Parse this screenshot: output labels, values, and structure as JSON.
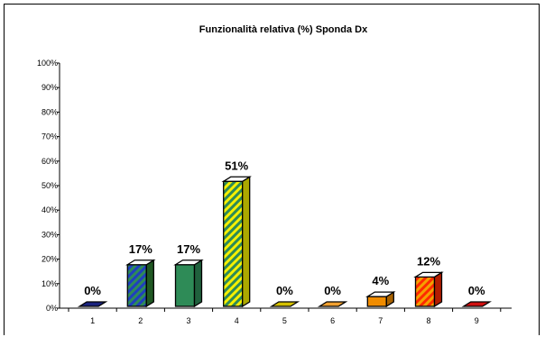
{
  "chart_data": {
    "type": "bar",
    "title": "Funzionalità relativa (%) Sponda Dx",
    "categories": [
      "1",
      "2",
      "3",
      "4",
      "5",
      "6",
      "7",
      "8",
      "9"
    ],
    "values": [
      0,
      17,
      17,
      51,
      0,
      0,
      4,
      12,
      0
    ],
    "data_labels": [
      "0%",
      "17%",
      "17%",
      "51%",
      "0%",
      "0%",
      "4%",
      "12%",
      "0%"
    ],
    "y_ticks": [
      "0%",
      "10%",
      "20%",
      "30%",
      "40%",
      "50%",
      "60%",
      "70%",
      "80%",
      "90%",
      "100%"
    ],
    "ylim": [
      0,
      100
    ],
    "xlabel": "",
    "ylabel": "",
    "grid": false,
    "legend": "none",
    "bar_colors": [
      "#1a237e",
      "#2e7d32",
      "#2e8b57",
      "#f5f000",
      "#d4c000",
      "#f0a030",
      "#f08c00",
      "#ff2a00",
      "#d01010"
    ],
    "bar_patterns": [
      "none",
      "stripe-blue",
      "none",
      "stripe-yellow",
      "none",
      "none",
      "none",
      "stripe-red",
      "none"
    ]
  }
}
